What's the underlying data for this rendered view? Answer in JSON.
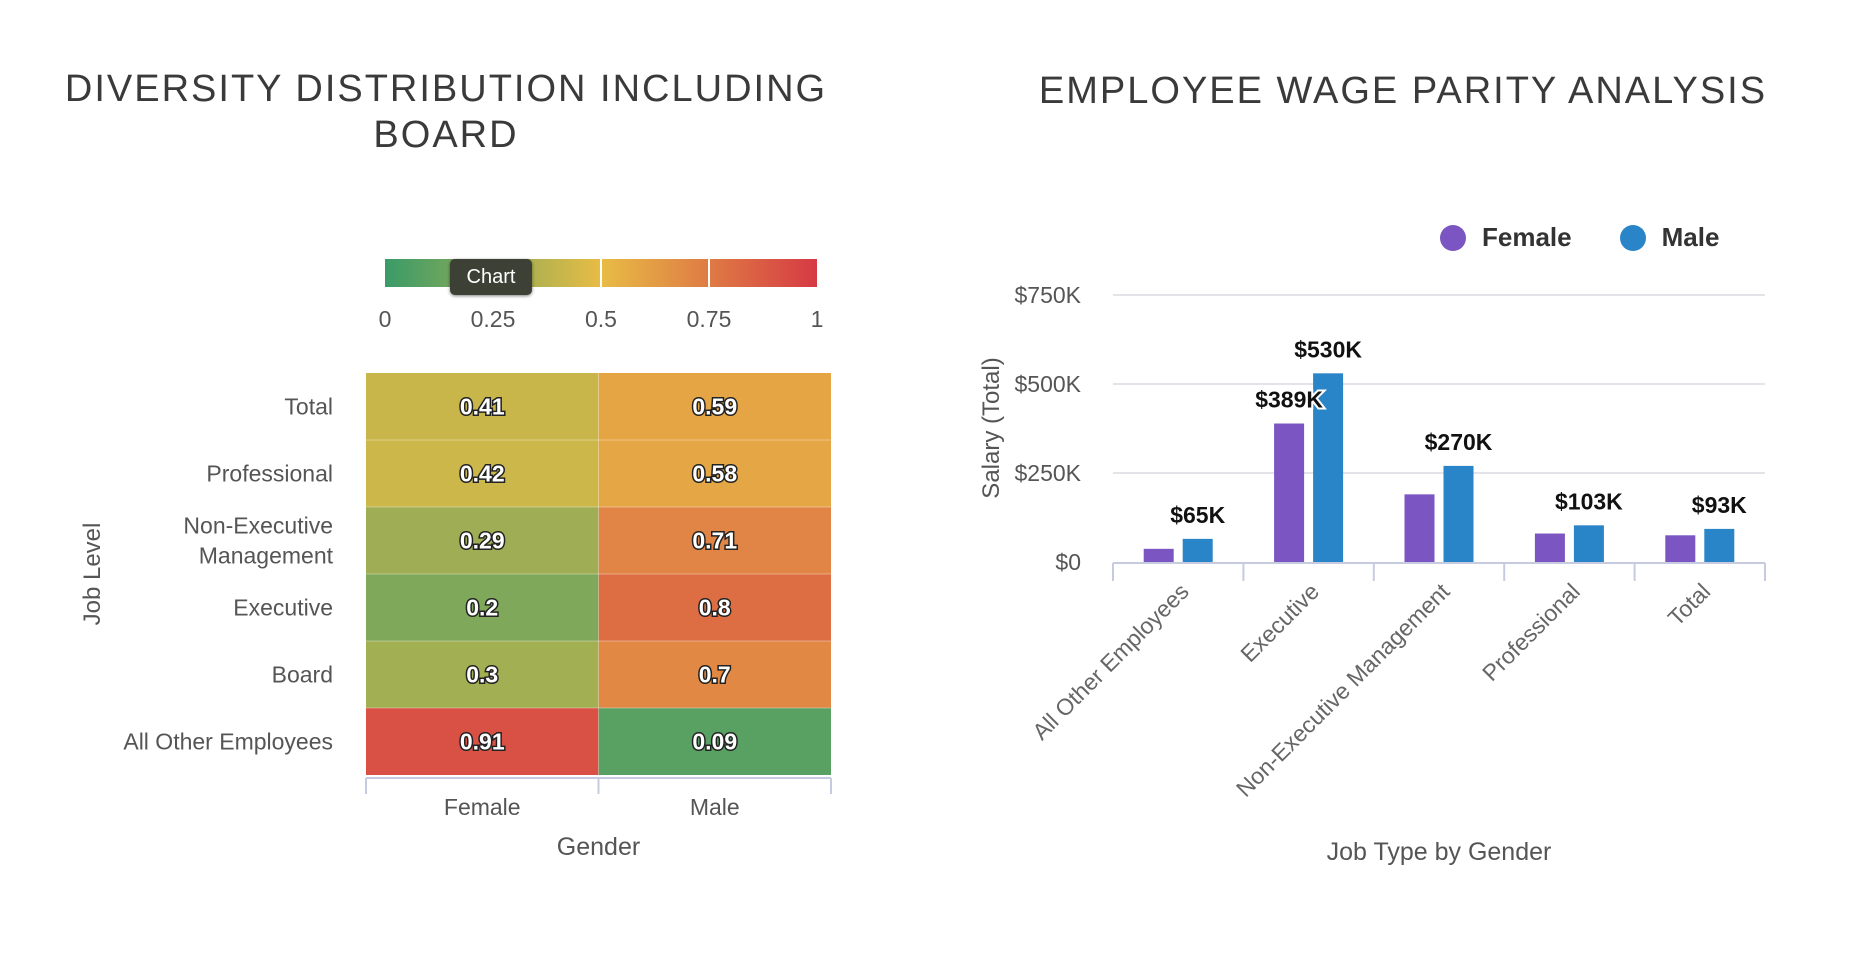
{
  "colors": {
    "scale_low": "#3a9b68",
    "scale_mid": "#e8bc45",
    "scale_high": "#d63a44",
    "female": "#7b55c2",
    "male": "#2a84c8",
    "grid": "#e2e4ea",
    "axis": "#c7cbe0"
  },
  "tooltip": {
    "label": "Chart"
  },
  "chart_data": [
    {
      "type": "heatmap",
      "title": "DIVERSITY DISTRIBUTION INCLUDING BOARD",
      "xlabel": "Gender",
      "ylabel": "Job Level",
      "x_categories": [
        "Female",
        "Male"
      ],
      "y_categories": [
        "Total",
        "Professional",
        "Non-Executive Management",
        "Executive",
        "Board",
        "All Other Employees"
      ],
      "y_category_lines": [
        [
          "Total"
        ],
        [
          "Professional"
        ],
        [
          "Non-Executive",
          "Management"
        ],
        [
          "Executive"
        ],
        [
          "Board"
        ],
        [
          "All Other Employees"
        ]
      ],
      "values": [
        [
          0.41,
          0.59
        ],
        [
          0.42,
          0.58
        ],
        [
          0.29,
          0.71
        ],
        [
          0.2,
          0.8
        ],
        [
          0.3,
          0.7
        ],
        [
          0.91,
          0.09
        ]
      ],
      "value_labels": [
        [
          "0.41",
          "0.59"
        ],
        [
          "0.42",
          "0.58"
        ],
        [
          "0.29",
          "0.71"
        ],
        [
          "0.2",
          "0.8"
        ],
        [
          "0.3",
          "0.7"
        ],
        [
          "0.91",
          "0.09"
        ]
      ],
      "color_scale": {
        "min": 0,
        "max": 1,
        "ticks": [
          "0",
          "0.25",
          "0.5",
          "0.75",
          "1"
        ]
      }
    },
    {
      "type": "bar",
      "title": "EMPLOYEE WAGE PARITY ANALYSIS",
      "xlabel": "Job Type by Gender",
      "ylabel": "Salary (Total)",
      "categories": [
        "All Other Employees",
        "Executive",
        "Non-Executive Management",
        "Professional",
        "Total"
      ],
      "series": [
        {
          "name": "Female",
          "values": [
            37000,
            389000,
            190000,
            80000,
            75000
          ]
        },
        {
          "name": "Male",
          "values": [
            65000,
            530000,
            270000,
            103000,
            93000
          ]
        }
      ],
      "data_labels": [
        "$65K",
        "$389K",
        "$530K",
        "$270K",
        "$103K",
        "$93K"
      ],
      "yticks": [
        "$0",
        "$250K",
        "$500K",
        "$750K"
      ],
      "ylim": [
        0,
        750000
      ],
      "legend": "top-right",
      "grid": true
    }
  ]
}
